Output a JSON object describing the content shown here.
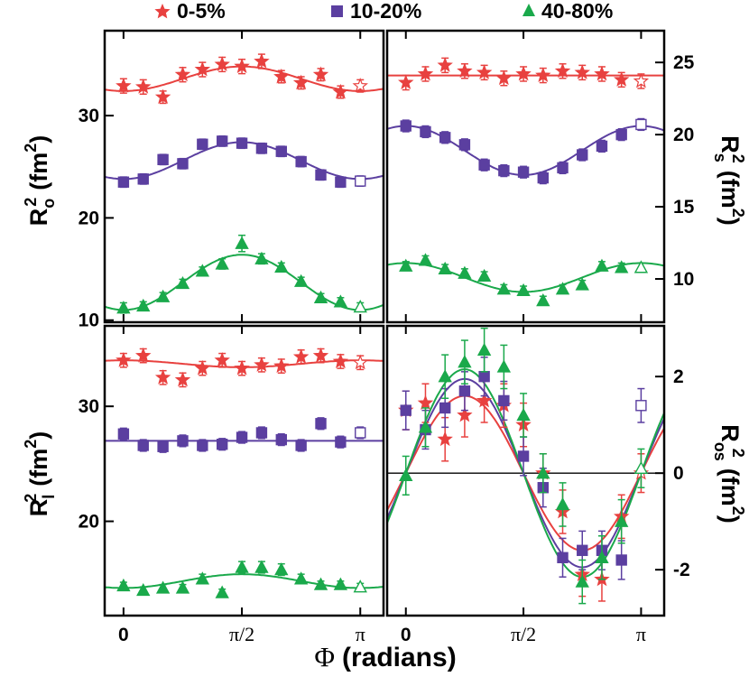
{
  "chart_data": {
    "type": "scatter",
    "legend": {
      "placement": "top",
      "items": [
        {
          "label": "0-5%",
          "marker": "star",
          "color": "#e8413f"
        },
        {
          "label": "10-20%",
          "marker": "square",
          "color": "#5b3fa0"
        },
        {
          "label": "40-80%",
          "marker": "triangle",
          "color": "#1aa94b"
        }
      ]
    },
    "xlabel": {
      "symbol": "Φ",
      "text": "(radians)"
    },
    "xlim": [
      -0.25,
      3.45
    ],
    "xticks": [
      {
        "value": 0,
        "label": "0"
      },
      {
        "value": 1.5708,
        "label": "π/2"
      },
      {
        "value": 3.1416,
        "label": "π"
      }
    ],
    "panels": [
      {
        "id": "Ro",
        "ylabel": {
          "base": "R",
          "sub": "o",
          "sup": "2",
          "unit": "(fm",
          "unit_sup": "2",
          "close": ")"
        },
        "ylabel_side": "left",
        "ylim": [
          9.8,
          38.3
        ],
        "yticks": [
          {
            "value": 10,
            "label": "10"
          },
          {
            "value": 20,
            "label": "20"
          },
          {
            "value": 30,
            "label": "30"
          }
        ],
        "series": [
          {
            "name": "0-5%",
            "mean": 33.6,
            "amp": -1.2,
            "points": [
              32.9,
              32.8,
              31.8,
              34.0,
              34.5,
              35.0,
              34.8,
              35.3,
              33.8,
              33.2,
              34.0,
              32.3,
              32.9
            ],
            "err": [
              0.7,
              0.7,
              0.6,
              0.7,
              0.7,
              0.7,
              0.7,
              0.7,
              0.6,
              0.6,
              0.6,
              0.6,
              0.6
            ]
          },
          {
            "name": "10-20%",
            "mean": 25.6,
            "amp": -1.8,
            "points": [
              23.5,
              23.8,
              25.7,
              25.3,
              27.2,
              27.5,
              27.3,
              26.8,
              26.5,
              25.5,
              24.2,
              23.5,
              23.6
            ],
            "err": [
              0.5,
              0.5,
              0.5,
              0.5,
              0.5,
              0.5,
              0.5,
              0.5,
              0.5,
              0.5,
              0.5,
              0.5,
              0.5
            ]
          },
          {
            "name": "40-80%",
            "mean": 13.7,
            "amp": -2.7,
            "points": [
              11.2,
              11.4,
              12.3,
              13.6,
              14.8,
              15.5,
              17.5,
              16.0,
              15.2,
              13.8,
              12.2,
              11.8,
              11.3
            ],
            "err": [
              0.5,
              0.4,
              0.4,
              0.4,
              0.4,
              0.5,
              0.8,
              0.5,
              0.4,
              0.4,
              0.4,
              0.4,
              0.4
            ]
          }
        ]
      },
      {
        "id": "Rs",
        "ylabel": {
          "base": "R",
          "sub": "s",
          "sup": "2",
          "unit": "(fm",
          "unit_sup": "2",
          "close": ")"
        },
        "ylabel_side": "right",
        "ylim": [
          7.0,
          27.2
        ],
        "yticks": [
          {
            "value": 10,
            "label": "10"
          },
          {
            "value": 15,
            "label": "15"
          },
          {
            "value": 20,
            "label": "20"
          },
          {
            "value": 25,
            "label": "25"
          }
        ],
        "series": [
          {
            "name": "0-5%",
            "mean": 24.1,
            "amp": 0.0,
            "points": [
              23.6,
              24.2,
              24.8,
              24.4,
              24.3,
              23.9,
              24.2,
              24.1,
              24.4,
              24.3,
              24.2,
              23.8,
              23.7
            ],
            "err": [
              0.5,
              0.5,
              0.5,
              0.5,
              0.5,
              0.5,
              0.5,
              0.5,
              0.5,
              0.5,
              0.5,
              0.5,
              0.5
            ]
          },
          {
            "name": "10-20%",
            "mean": 18.9,
            "amp": 1.7,
            "points": [
              20.6,
              20.2,
              19.8,
              19.3,
              17.9,
              17.5,
              17.4,
              17.0,
              17.7,
              18.6,
              19.2,
              20.0,
              20.7
            ],
            "err": [
              0.4,
              0.4,
              0.4,
              0.4,
              0.4,
              0.4,
              0.4,
              0.4,
              0.4,
              0.4,
              0.4,
              0.4,
              0.4
            ]
          },
          {
            "name": "40-80%",
            "mean": 10.1,
            "amp": 1.0,
            "points": [
              10.9,
              11.3,
              10.7,
              10.4,
              10.2,
              9.3,
              9.2,
              8.5,
              9.3,
              9.6,
              10.9,
              10.8,
              10.8
            ],
            "err": [
              0.3,
              0.3,
              0.3,
              0.3,
              0.3,
              0.3,
              0.3,
              0.3,
              0.3,
              0.3,
              0.3,
              0.3,
              0.3
            ]
          }
        ]
      },
      {
        "id": "Rl",
        "ylabel": {
          "base": "R",
          "sub": "l",
          "sup": "2",
          "unit": "(fm",
          "unit_sup": "2",
          "close": ")"
        },
        "ylabel_side": "left",
        "ylim": [
          11.8,
          37.0
        ],
        "yticks": [
          {
            "value": 20,
            "label": "20"
          },
          {
            "value": 30,
            "label": "30"
          }
        ],
        "series": [
          {
            "name": "0-5%",
            "mean": 33.7,
            "amp": 0.3,
            "points": [
              34.0,
              34.4,
              32.5,
              32.3,
              33.3,
              34.0,
              33.3,
              33.6,
              33.5,
              34.3,
              34.4,
              33.9,
              33.8
            ],
            "err": [
              0.6,
              0.6,
              0.6,
              0.6,
              0.6,
              0.6,
              0.6,
              0.6,
              0.6,
              0.6,
              0.6,
              0.6,
              0.6
            ]
          },
          {
            "name": "10-20%",
            "mean": 27.0,
            "amp": 0.0,
            "points": [
              27.6,
              26.6,
              26.5,
              27.0,
              26.6,
              26.7,
              27.3,
              27.7,
              27.1,
              26.6,
              28.5,
              26.9,
              27.7
            ],
            "err": [
              0.5,
              0.5,
              0.5,
              0.5,
              0.5,
              0.5,
              0.5,
              0.5,
              0.5,
              0.5,
              0.5,
              0.5,
              0.5
            ]
          },
          {
            "name": "40-80%",
            "mean": 14.8,
            "amp": -0.6,
            "points": [
              14.4,
              14.0,
              14.2,
              14.2,
              15.0,
              13.8,
              16.0,
              16.0,
              15.8,
              15.0,
              14.5,
              14.5,
              14.3
            ],
            "err": [
              0.3,
              0.3,
              0.3,
              0.3,
              0.4,
              0.3,
              0.5,
              0.5,
              0.5,
              0.4,
              0.3,
              0.3,
              0.3
            ]
          }
        ]
      },
      {
        "id": "Ros",
        "ylabel": {
          "base": "R",
          "sub": "os",
          "sup": "2",
          "unit": "(fm",
          "unit_sup": "2",
          "close": ")"
        },
        "ylabel_side": "right",
        "ylim": [
          -2.95,
          3.05
        ],
        "yticks": [
          {
            "value": -2,
            "label": "-2"
          },
          {
            "value": 0,
            "label": "0"
          },
          {
            "value": 2,
            "label": "2"
          }
        ],
        "zero_line": true,
        "sine_amps": [
          1.6,
          1.95,
          2.15
        ],
        "series": [
          {
            "name": "0-5%",
            "points": [
              1.3,
              1.45,
              0.7,
              1.2,
              1.5,
              1.4,
              1.0,
              0.0,
              -0.8,
              -2.1,
              -2.2,
              -0.9,
              0.0
            ],
            "err": [
              0.4,
              0.4,
              0.45,
              0.45,
              0.45,
              0.45,
              0.45,
              0.4,
              0.45,
              0.45,
              0.45,
              0.45,
              0.4
            ]
          },
          {
            "name": "10-20%",
            "points": [
              1.3,
              0.9,
              1.35,
              1.7,
              2.0,
              1.5,
              0.35,
              -0.3,
              -1.75,
              -1.6,
              -1.6,
              -1.8,
              1.4
            ],
            "err": [
              0.4,
              0.4,
              0.4,
              0.4,
              0.4,
              0.4,
              0.4,
              0.4,
              0.4,
              0.4,
              0.4,
              0.4,
              0.35
            ]
          },
          {
            "name": "40-80%",
            "points": [
              -0.05,
              0.95,
              2.0,
              2.3,
              2.55,
              2.2,
              1.2,
              0.0,
              -0.65,
              -2.25,
              -1.75,
              -1.0,
              0.1
            ],
            "err": [
              0.4,
              0.4,
              0.45,
              0.45,
              0.45,
              0.45,
              0.45,
              0.4,
              0.45,
              0.45,
              0.45,
              0.45,
              0.4
            ]
          }
        ]
      }
    ]
  }
}
